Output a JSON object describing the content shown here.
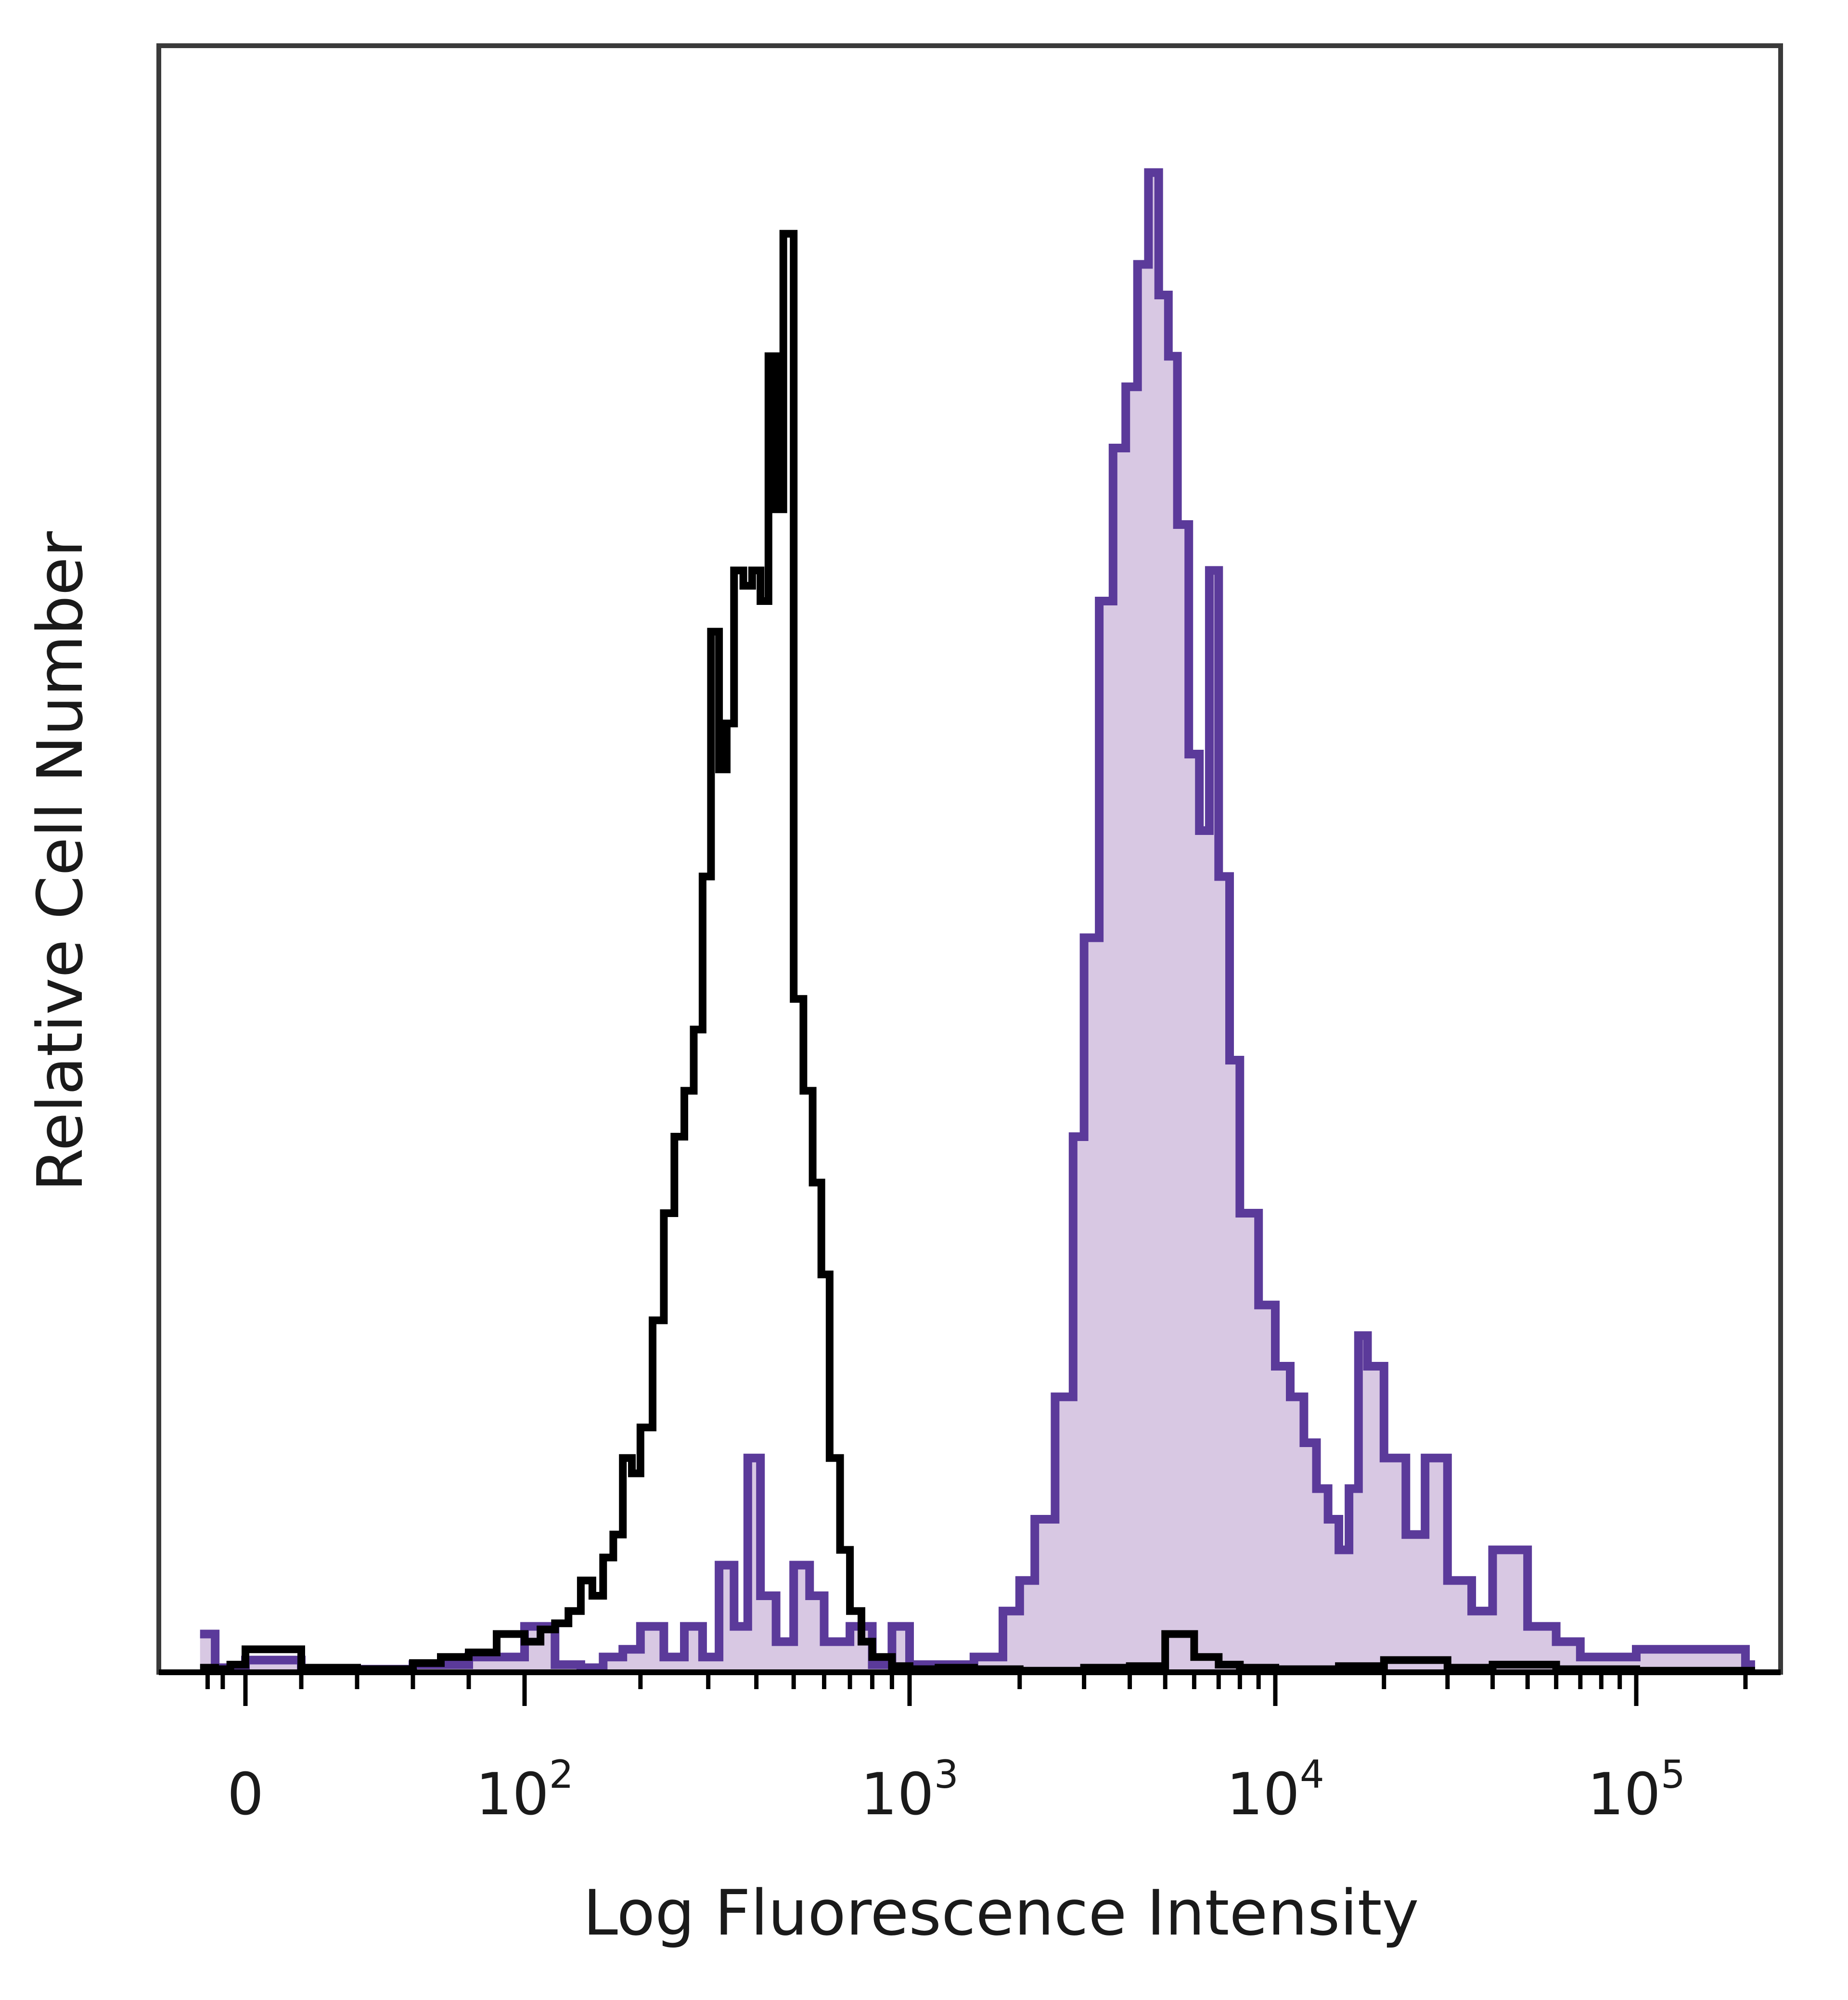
{
  "chart_data": {
    "type": "area",
    "title": "",
    "xlabel": "Log Fluorescence Intensity",
    "ylabel": "Relative Cell Number",
    "x_scale": "biexponential (log above 100)",
    "xlim": [
      -70,
      250000
    ],
    "ylim": [
      0,
      100
    ],
    "grid": false,
    "legend": "none",
    "x_ticks": [
      {
        "value": 0,
        "base": "0",
        "exp": ""
      },
      {
        "value": 100,
        "base": "10",
        "exp": "2"
      },
      {
        "value": 1000,
        "base": "10",
        "exp": "3"
      },
      {
        "value": 10000,
        "base": "10",
        "exp": "4"
      },
      {
        "value": 100000,
        "base": "10",
        "exp": "5"
      }
    ],
    "series": [
      {
        "color": "#000000",
        "fill": "none",
        "x": [
          -60,
          -40,
          -20,
          0,
          20,
          40,
          60,
          70,
          80,
          90,
          100,
          110,
          120,
          130,
          140,
          150,
          160,
          170,
          180,
          190,
          200,
          215,
          230,
          245,
          260,
          275,
          290,
          305,
          320,
          335,
          350,
          370,
          390,
          410,
          430,
          450,
          470,
          500,
          530,
          560,
          590,
          620,
          660,
          700,
          750,
          800,
          900,
          1000,
          1200,
          1500,
          2000,
          3000,
          4000,
          5000,
          6000,
          7000,
          8000,
          10000,
          15000,
          20000,
          30000,
          40000,
          60000,
          100000,
          200000
        ],
        "values": [
          0.3,
          0.2,
          0.5,
          1.5,
          0.3,
          0.2,
          0.6,
          1.0,
          1.3,
          2.5,
          2.0,
          2.8,
          3.2,
          4.0,
          6.0,
          5.0,
          7.5,
          9.0,
          14.0,
          13.0,
          16.0,
          23.0,
          30.0,
          35.0,
          38.0,
          42.0,
          52.0,
          68.0,
          59.0,
          62.0,
          72.0,
          71.0,
          72.0,
          70.0,
          86.0,
          76.0,
          94.0,
          44.0,
          38.0,
          32.0,
          26.0,
          14.0,
          8.0,
          4.0,
          2.0,
          1.0,
          0.4,
          0.2,
          0.3,
          0.2,
          0.1,
          0.3,
          0.4,
          2.5,
          1.0,
          0.5,
          0.3,
          0.2,
          0.4,
          0.8,
          0.3,
          0.5,
          0.2,
          0.1,
          0.1
        ]
      },
      {
        "color": "#5b3a9a",
        "fill": "#d8c8e3",
        "x": [
          -60,
          -40,
          -20,
          0,
          20,
          40,
          60,
          80,
          100,
          120,
          140,
          160,
          180,
          200,
          230,
          260,
          290,
          320,
          350,
          380,
          410,
          450,
          500,
          550,
          600,
          700,
          800,
          900,
          1000,
          1200,
          1500,
          1800,
          2000,
          2200,
          2500,
          2800,
          3000,
          3300,
          3600,
          3900,
          4200,
          4500,
          4800,
          5100,
          5400,
          5800,
          6200,
          6600,
          7000,
          7500,
          8000,
          9000,
          10000,
          11000,
          12000,
          13000,
          14000,
          15000,
          16000,
          17000,
          18000,
          20000,
          23000,
          26000,
          30000,
          35000,
          40000,
          50000,
          60000,
          70000,
          100000,
          200000
        ],
        "values": [
          2.5,
          0.3,
          0.2,
          0.8,
          0.2,
          0.2,
          0.5,
          1.0,
          3.0,
          0.5,
          0.3,
          1.0,
          1.5,
          3.0,
          1.0,
          3.0,
          1.0,
          7.0,
          3.0,
          14.0,
          5.0,
          2.0,
          7.0,
          5.0,
          2.0,
          3.0,
          0.5,
          3.0,
          0.5,
          0.5,
          1.0,
          4.0,
          6.0,
          10.0,
          18.0,
          35.0,
          48.0,
          70.0,
          80.0,
          84.0,
          92.0,
          98.0,
          90.0,
          86.0,
          75.0,
          60.0,
          55.0,
          72.0,
          52.0,
          40.0,
          30.0,
          24.0,
          20.0,
          18.0,
          15.0,
          12.0,
          10.0,
          8.0,
          12.0,
          22.0,
          20.0,
          14.0,
          9.0,
          14.0,
          6.0,
          4.0,
          8.0,
          3.0,
          2.0,
          1.0,
          1.5,
          0.5
        ]
      }
    ]
  }
}
